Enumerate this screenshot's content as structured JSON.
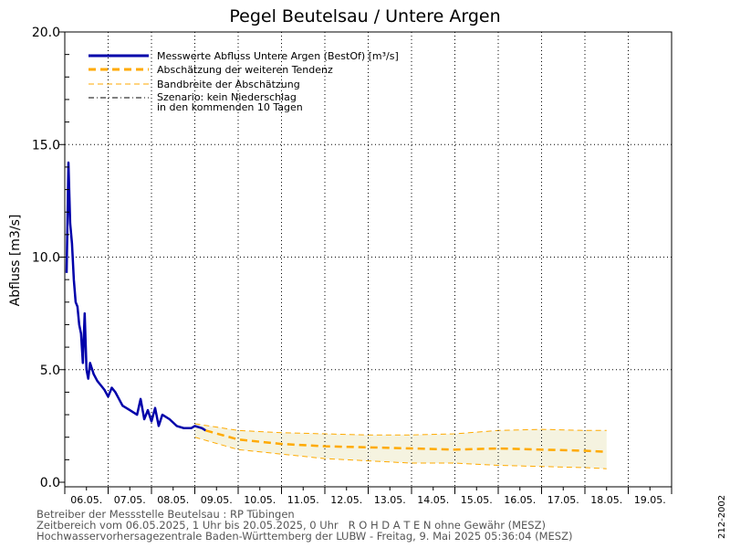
{
  "chart_data": {
    "type": "line",
    "title": "Pegel Beutelsau / Untere Argen",
    "xlabel": "",
    "ylabel": "Abfluss [m3/s]",
    "ylim": [
      0,
      20
    ],
    "yticks": [
      "0.0",
      "5.0",
      "10.0",
      "15.0",
      "20.0"
    ],
    "xlim": [
      "2025-05-06T00:00",
      "2025-05-20T00:00"
    ],
    "x_tick_labels": [
      "06.05.",
      "07.05.",
      "08.05.",
      "09.05.",
      "10.05.",
      "11.05.",
      "12.05.",
      "13.05.",
      "14.05.",
      "15.05.",
      "16.05.",
      "17.05.",
      "18.05.",
      "19.05."
    ],
    "grid": true,
    "legend_position": "top-left",
    "legend": [
      "Messwerte Abfluss Untere Argen (BestOf)  [m³/s]",
      "Abschätzung der weiteren Tendenz",
      "Bandbreite der Abschätzung",
      "Szenario: kein Niederschlag",
      "in den kommenden 10 Tagen"
    ],
    "series": [
      {
        "name": "Messwerte Abfluss Untere Argen (BestOf)  [m³/s]",
        "color": "#0000aa",
        "points": [
          [
            "2025-05-06T01:00",
            9.3
          ],
          [
            "2025-05-06T02:00",
            14.2
          ],
          [
            "2025-05-06T03:00",
            11.5
          ],
          [
            "2025-05-06T04:00",
            10.6
          ],
          [
            "2025-05-06T05:00",
            9.0
          ],
          [
            "2025-05-06T06:00",
            8.0
          ],
          [
            "2025-05-06T07:00",
            7.8
          ],
          [
            "2025-05-06T08:00",
            7.0
          ],
          [
            "2025-05-06T09:00",
            6.6
          ],
          [
            "2025-05-06T10:00",
            5.3
          ],
          [
            "2025-05-06T11:00",
            7.5
          ],
          [
            "2025-05-06T12:00",
            5.0
          ],
          [
            "2025-05-06T13:00",
            4.6
          ],
          [
            "2025-05-06T14:00",
            5.3
          ],
          [
            "2025-05-06T16:00",
            4.8
          ],
          [
            "2025-05-06T18:00",
            4.5
          ],
          [
            "2025-05-06T20:00",
            4.3
          ],
          [
            "2025-05-06T22:00",
            4.1
          ],
          [
            "2025-05-07T00:00",
            3.8
          ],
          [
            "2025-05-07T02:00",
            4.2
          ],
          [
            "2025-05-07T04:00",
            4.0
          ],
          [
            "2025-05-07T08:00",
            3.4
          ],
          [
            "2025-05-07T12:00",
            3.2
          ],
          [
            "2025-05-07T16:00",
            3.0
          ],
          [
            "2025-05-07T18:00",
            3.7
          ],
          [
            "2025-05-07T20:00",
            2.8
          ],
          [
            "2025-05-07T22:00",
            3.2
          ],
          [
            "2025-05-08T00:00",
            2.7
          ],
          [
            "2025-05-08T02:00",
            3.3
          ],
          [
            "2025-05-08T04:00",
            2.5
          ],
          [
            "2025-05-08T06:00",
            3.0
          ],
          [
            "2025-05-08T10:00",
            2.8
          ],
          [
            "2025-05-08T14:00",
            2.5
          ],
          [
            "2025-05-08T18:00",
            2.4
          ],
          [
            "2025-05-08T22:00",
            2.4
          ],
          [
            "2025-05-09T00:00",
            2.5
          ],
          [
            "2025-05-09T04:00",
            2.4
          ],
          [
            "2025-05-09T06:00",
            2.3
          ]
        ]
      },
      {
        "name": "Abschätzung der weiteren Tendenz",
        "color": "#ffaa00",
        "points": [
          [
            "2025-05-09T06:00",
            2.3
          ],
          [
            "2025-05-10T00:00",
            1.9
          ],
          [
            "2025-05-11T00:00",
            1.7
          ],
          [
            "2025-05-12T00:00",
            1.6
          ],
          [
            "2025-05-13T00:00",
            1.55
          ],
          [
            "2025-05-14T00:00",
            1.5
          ],
          [
            "2025-05-15T00:00",
            1.45
          ],
          [
            "2025-05-16T00:00",
            1.5
          ],
          [
            "2025-05-17T00:00",
            1.45
          ],
          [
            "2025-05-18T00:00",
            1.4
          ],
          [
            "2025-05-18T12:00",
            1.35
          ]
        ]
      },
      {
        "name": "Bandbreite der Abschätzung",
        "color": "#ffaa00",
        "upper": [
          [
            "2025-05-09T00:00",
            2.6
          ],
          [
            "2025-05-10T00:00",
            2.3
          ],
          [
            "2025-05-11T00:00",
            2.2
          ],
          [
            "2025-05-12T00:00",
            2.15
          ],
          [
            "2025-05-13T00:00",
            2.1
          ],
          [
            "2025-05-14T00:00",
            2.1
          ],
          [
            "2025-05-15T00:00",
            2.15
          ],
          [
            "2025-05-16T00:00",
            2.3
          ],
          [
            "2025-05-17T00:00",
            2.35
          ],
          [
            "2025-05-18T00:00",
            2.3
          ],
          [
            "2025-05-18T12:00",
            2.3
          ]
        ],
        "lower": [
          [
            "2025-05-09T00:00",
            2.0
          ],
          [
            "2025-05-10T00:00",
            1.45
          ],
          [
            "2025-05-11T00:00",
            1.25
          ],
          [
            "2025-05-12T00:00",
            1.05
          ],
          [
            "2025-05-13T00:00",
            0.95
          ],
          [
            "2025-05-14T00:00",
            0.85
          ],
          [
            "2025-05-15T00:00",
            0.85
          ],
          [
            "2025-05-16T00:00",
            0.75
          ],
          [
            "2025-05-17T00:00",
            0.7
          ],
          [
            "2025-05-18T00:00",
            0.65
          ],
          [
            "2025-05-18T12:00",
            0.6
          ]
        ]
      }
    ]
  },
  "footer": {
    "line1": "Betreiber der Messstelle Beutelsau : RP Tübingen",
    "line2": "Zeitbereich vom 06.05.2025, 1 Uhr bis 20.05.2025, 0 Uhr   R O H D A T E N ohne Gewähr (MESZ)",
    "line3": "Hochwasservorhersagezentrale Baden-Württemberg der LUBW - Freitag, 9. Mai 2025 05:36:04 (MESZ)"
  },
  "side_code": "212-2002"
}
